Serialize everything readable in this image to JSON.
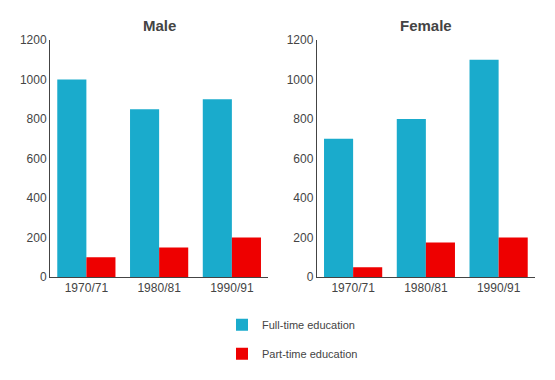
{
  "chart_data": [
    {
      "type": "bar",
      "title": "Male",
      "categories": [
        "1970/71",
        "1980/81",
        "1990/91"
      ],
      "series": [
        {
          "name": "Full-time education",
          "color": "#1AABCC",
          "values": [
            1000,
            850,
            900
          ]
        },
        {
          "name": "Part-time education",
          "color": "#EE0000",
          "values": [
            100,
            150,
            200
          ]
        }
      ],
      "ylim": [
        0,
        1200
      ],
      "yticks": [
        0,
        200,
        400,
        600,
        800,
        1000,
        1200
      ],
      "grid": false,
      "legend": "bottom"
    },
    {
      "type": "bar",
      "title": "Female",
      "categories": [
        "1970/71",
        "1980/81",
        "1990/91"
      ],
      "series": [
        {
          "name": "Full-time education",
          "color": "#1AABCC",
          "values": [
            700,
            800,
            1100
          ]
        },
        {
          "name": "Part-time education",
          "color": "#EE0000",
          "values": [
            50,
            175,
            200
          ]
        }
      ],
      "ylim": [
        0,
        1200
      ],
      "yticks": [
        0,
        200,
        400,
        600,
        800,
        1000,
        1200
      ],
      "grid": false,
      "legend": "bottom"
    }
  ]
}
